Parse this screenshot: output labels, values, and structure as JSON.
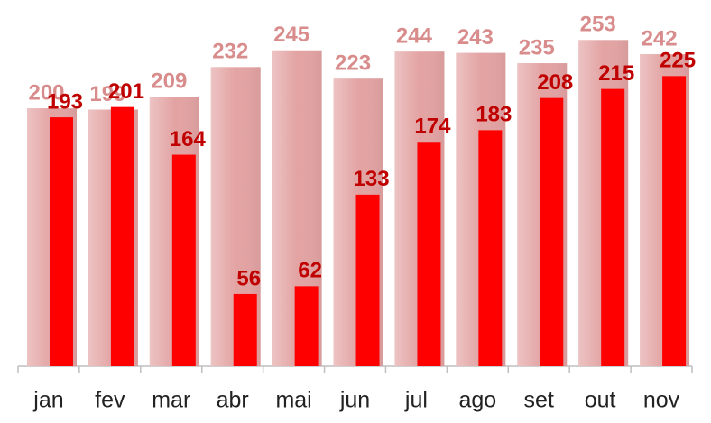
{
  "chart_data": {
    "type": "bar",
    "categories": [
      "jan",
      "fev",
      "mar",
      "abr",
      "mai",
      "jun",
      "jul",
      "ago",
      "set",
      "out",
      "nov"
    ],
    "series": [
      {
        "color": "#e3a3a3",
        "label_color": "#d98c8c",
        "values": [
          200,
          199,
          209,
          232,
          245,
          223,
          244,
          243,
          235,
          253,
          242
        ]
      },
      {
        "color": "#ff0000",
        "label_color": "#c00000",
        "values": [
          193,
          201,
          164,
          56,
          62,
          133,
          174,
          183,
          208,
          215,
          225
        ]
      }
    ],
    "ylim": [
      0,
      284
    ]
  }
}
